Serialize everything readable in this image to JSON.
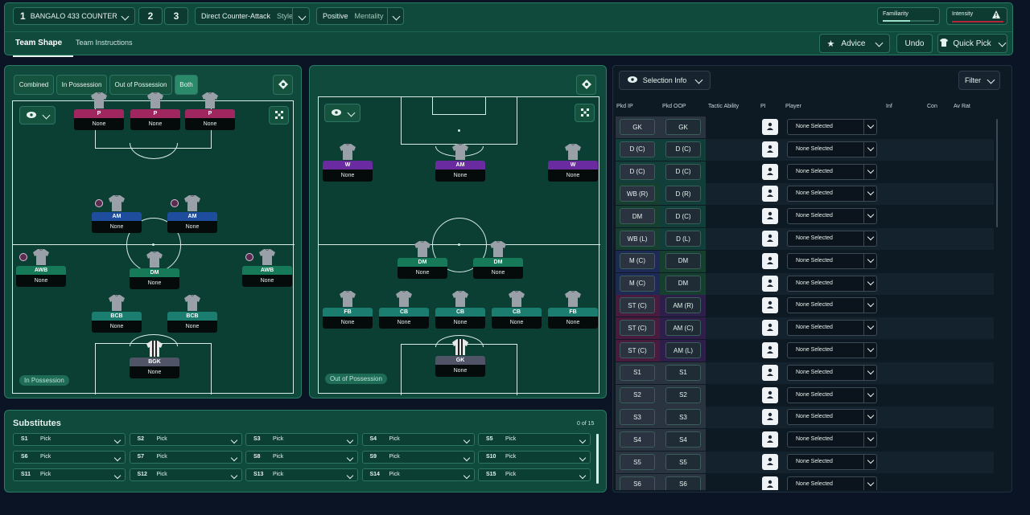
{
  "header": {
    "tactic_slot": "1",
    "tactic_name": "BANGALO 433 COUNTER",
    "slot2": "2",
    "slot3": "3",
    "style_value": "Direct Counter-Attack",
    "style_label": "Style",
    "mentality_value": "Positive",
    "mentality_label": "Mentality",
    "familiarity_label": "Familiarity",
    "intensity_label": "Intensity",
    "tabs": [
      "Team Shape",
      "Team Instructions"
    ],
    "advice_label": "Advice",
    "undo_label": "Undo",
    "quick_pick_label": "Quick Pick"
  },
  "possession_panel": {
    "toggles": [
      "Combined",
      "In Possession",
      "Out of Possession",
      "Both"
    ],
    "active_toggle": "Both",
    "label": "In Possession",
    "players": [
      {
        "role": "P",
        "name": "None",
        "color": "pink"
      },
      {
        "role": "P",
        "name": "None",
        "color": "pink"
      },
      {
        "role": "P",
        "name": "None",
        "color": "pink"
      },
      {
        "role": "AM",
        "name": "None",
        "color": "blue"
      },
      {
        "role": "AM",
        "name": "None",
        "color": "blue"
      },
      {
        "role": "AWB",
        "name": "None",
        "color": "green"
      },
      {
        "role": "DM",
        "name": "None",
        "color": "green"
      },
      {
        "role": "AWB",
        "name": "None",
        "color": "green"
      },
      {
        "role": "BCB",
        "name": "None",
        "color": "teal"
      },
      {
        "role": "BCB",
        "name": "None",
        "color": "teal"
      },
      {
        "role": "BGK",
        "name": "None",
        "color": "grey"
      }
    ]
  },
  "out_possession_panel": {
    "label": "Out of Possession",
    "players": [
      {
        "role": "W",
        "name": "None",
        "color": "purple"
      },
      {
        "role": "AM",
        "name": "None",
        "color": "purple"
      },
      {
        "role": "W",
        "name": "None",
        "color": "purple"
      },
      {
        "role": "DM",
        "name": "None",
        "color": "green"
      },
      {
        "role": "DM",
        "name": "None",
        "color": "green"
      },
      {
        "role": "FB",
        "name": "None",
        "color": "teal"
      },
      {
        "role": "CB",
        "name": "None",
        "color": "teal"
      },
      {
        "role": "CB",
        "name": "None",
        "color": "teal"
      },
      {
        "role": "CB",
        "name": "None",
        "color": "teal"
      },
      {
        "role": "FB",
        "name": "None",
        "color": "teal"
      },
      {
        "role": "GK",
        "name": "None",
        "color": "grey"
      }
    ]
  },
  "selection": {
    "view_label": "Selection Info",
    "filter_label": "Filter",
    "columns": [
      "Pkd IP",
      "Pkd OOP",
      "Tactic Ability",
      "PI",
      "Player",
      "Inf",
      "Con",
      "Av Rat"
    ],
    "rows": [
      {
        "ip": "GK",
        "oop": "GK",
        "player": "None Selected",
        "ipc": "#2a3340",
        "oopc": "#2a3340"
      },
      {
        "ip": "D (C)",
        "oop": "D (C)",
        "player": "None Selected",
        "ipc": "#123e3a",
        "oopc": "#123e3a"
      },
      {
        "ip": "D (C)",
        "oop": "D (C)",
        "player": "None Selected",
        "ipc": "#123e3a",
        "oopc": "#123e3a"
      },
      {
        "ip": "WB (R)",
        "oop": "D (R)",
        "player": "None Selected",
        "ipc": "#173f30",
        "oopc": "#123e3a"
      },
      {
        "ip": "DM",
        "oop": "D (C)",
        "player": "None Selected",
        "ipc": "#173f30",
        "oopc": "#123e3a"
      },
      {
        "ip": "WB (L)",
        "oop": "D (L)",
        "player": "None Selected",
        "ipc": "#173f30",
        "oopc": "#123e3a"
      },
      {
        "ip": "M (C)",
        "oop": "DM",
        "player": "None Selected",
        "ipc": "#1e2a55",
        "oopc": "#173f30"
      },
      {
        "ip": "M (C)",
        "oop": "DM",
        "player": "None Selected",
        "ipc": "#1e2a55",
        "oopc": "#173f30"
      },
      {
        "ip": "ST (C)",
        "oop": "AM (R)",
        "player": "None Selected",
        "ipc": "#4a1b3e",
        "oopc": "#2e1f4a"
      },
      {
        "ip": "ST (C)",
        "oop": "AM (C)",
        "player": "None Selected",
        "ipc": "#4a1b3e",
        "oopc": "#2e1f4a"
      },
      {
        "ip": "ST (C)",
        "oop": "AM (L)",
        "player": "None Selected",
        "ipc": "#4a1b3e",
        "oopc": "#2e1f4a"
      },
      {
        "ip": "S1",
        "oop": "S1",
        "player": "None Selected",
        "ipc": "#2a3340",
        "oopc": "#2a3340"
      },
      {
        "ip": "S2",
        "oop": "S2",
        "player": "None Selected",
        "ipc": "#2a3340",
        "oopc": "#2a3340"
      },
      {
        "ip": "S3",
        "oop": "S3",
        "player": "None Selected",
        "ipc": "#2a3340",
        "oopc": "#2a3340"
      },
      {
        "ip": "S4",
        "oop": "S4",
        "player": "None Selected",
        "ipc": "#2a3340",
        "oopc": "#2a3340"
      },
      {
        "ip": "S5",
        "oop": "S5",
        "player": "None Selected",
        "ipc": "#2a3340",
        "oopc": "#2a3340"
      },
      {
        "ip": "S6",
        "oop": "S6",
        "player": "None Selected",
        "ipc": "#2a3340",
        "oopc": "#2a3340"
      }
    ]
  },
  "substitutes": {
    "title": "Substitutes",
    "count": "0 of 15",
    "slots": [
      {
        "id": "S1",
        "value": "Pick"
      },
      {
        "id": "S2",
        "value": "Pick"
      },
      {
        "id": "S3",
        "value": "Pick"
      },
      {
        "id": "S4",
        "value": "Pick"
      },
      {
        "id": "S5",
        "value": "Pick"
      },
      {
        "id": "S6",
        "value": "Pick"
      },
      {
        "id": "S7",
        "value": "Pick"
      },
      {
        "id": "S8",
        "value": "Pick"
      },
      {
        "id": "S9",
        "value": "Pick"
      },
      {
        "id": "S10",
        "value": "Pick"
      },
      {
        "id": "S11",
        "value": "Pick"
      },
      {
        "id": "S12",
        "value": "Pick"
      },
      {
        "id": "S13",
        "value": "Pick"
      },
      {
        "id": "S14",
        "value": "Pick"
      },
      {
        "id": "S15",
        "value": "Pick"
      }
    ]
  }
}
